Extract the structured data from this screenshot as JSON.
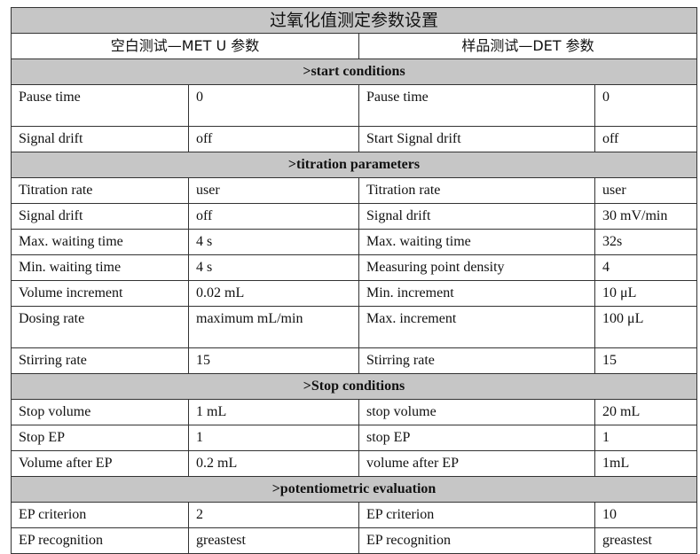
{
  "title": "过氧化值测定参数设置",
  "left_header": "空白测试—MET U  参数",
  "right_header": "样品测试—DET  参数",
  "sections": [
    {
      "label": ">start conditions",
      "rows": [
        [
          "Pause time",
          "0",
          "Pause time",
          "0"
        ],
        [
          "Signal drift",
          "off",
          "Start Signal drift",
          "off"
        ]
      ]
    },
    {
      "label": ">titration parameters",
      "rows": [
        [
          "Titration rate",
          "user",
          "Titration rate",
          "user"
        ],
        [
          "Signal drift",
          "off",
          "Signal drift",
          "30 mV/min"
        ],
        [
          "Max. waiting time",
          "4 s",
          "Max. waiting time",
          "32s"
        ],
        [
          "Min. waiting time",
          "4 s",
          "Measuring point density",
          "4"
        ],
        [
          "Volume increment",
          "0.02 mL",
          "Min. increment",
          "10 μL"
        ],
        [
          "Dosing rate",
          "maximum mL/min",
          "Max. increment",
          "100 μL"
        ],
        [
          "Stirring rate",
          "15",
          "Stirring rate",
          "15"
        ]
      ]
    },
    {
      "label": ">Stop conditions",
      "rows": [
        [
          "Stop volume",
          "1 mL",
          "stop volume",
          "20 mL"
        ],
        [
          "Stop EP",
          "1",
          "stop EP",
          "1"
        ],
        [
          "Volume after EP",
          "0.2 mL",
          "volume after EP",
          "1mL"
        ]
      ]
    },
    {
      "label": ">potentiometric evaluation",
      "rows": [
        [
          "EP criterion",
          "2",
          "EP criterion",
          "10"
        ],
        [
          "EP recognition",
          "greastest",
          "EP recognition",
          "greastest"
        ]
      ]
    }
  ]
}
